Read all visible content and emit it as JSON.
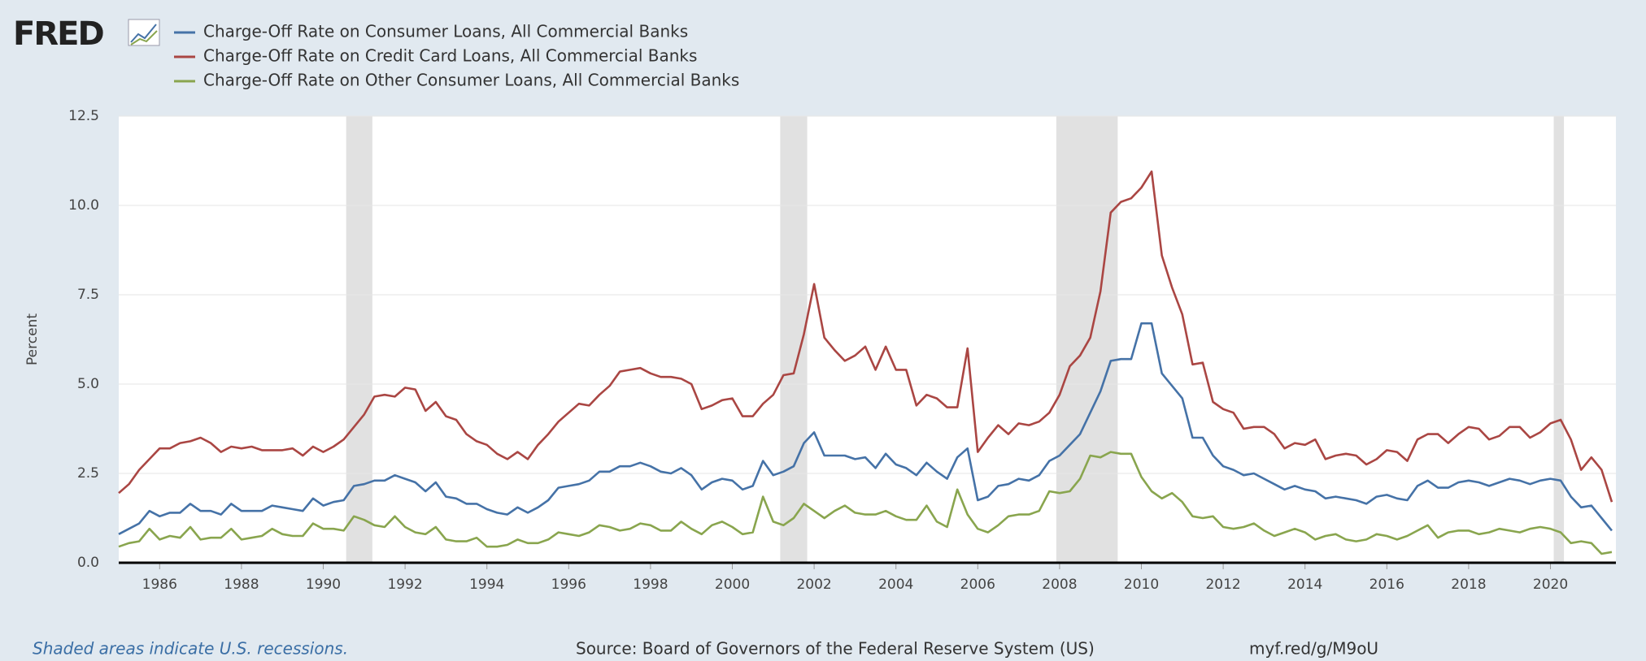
{
  "logo": "FRED",
  "footer": {
    "note": "Shaded areas indicate U.S. recessions.",
    "source": "Source: Board of Governors of the Federal Reserve System (US)",
    "link": "myf.red/g/M9oU"
  },
  "chart_data": {
    "type": "line",
    "y_label": "Percent",
    "xlim": [
      1985,
      2021.6
    ],
    "ylim": [
      0,
      12.5
    ],
    "xticks": [
      1986,
      1988,
      1990,
      1992,
      1994,
      1996,
      1998,
      2000,
      2002,
      2004,
      2006,
      2008,
      2010,
      2012,
      2014,
      2016,
      2018,
      2020
    ],
    "yticks": [
      {
        "value": 0,
        "label": "0.0"
      },
      {
        "value": 2.5,
        "label": "2.5"
      },
      {
        "value": 5,
        "label": "5.0"
      },
      {
        "value": 7.5,
        "label": "7.5"
      },
      {
        "value": 10,
        "label": "10.0"
      },
      {
        "value": 12.5,
        "label": "12.5"
      }
    ],
    "grid": true,
    "recessions": [
      [
        1990.56,
        1991.2
      ],
      [
        2001.17,
        2001.83
      ],
      [
        2007.92,
        2009.42
      ],
      [
        2020.08,
        2020.33
      ]
    ],
    "x": [
      1985,
      1985.25,
      1985.5,
      1985.75,
      1986,
      1986.25,
      1986.5,
      1986.75,
      1987,
      1987.25,
      1987.5,
      1987.75,
      1988,
      1988.25,
      1988.5,
      1988.75,
      1989,
      1989.25,
      1989.5,
      1989.75,
      1990,
      1990.25,
      1990.5,
      1990.75,
      1991,
      1991.25,
      1991.5,
      1991.75,
      1992,
      1992.25,
      1992.5,
      1992.75,
      1993,
      1993.25,
      1993.5,
      1993.75,
      1994,
      1994.25,
      1994.5,
      1994.75,
      1995,
      1995.25,
      1995.5,
      1995.75,
      1996,
      1996.25,
      1996.5,
      1996.75,
      1997,
      1997.25,
      1997.5,
      1997.75,
      1998,
      1998.25,
      1998.5,
      1998.75,
      1999,
      1999.25,
      1999.5,
      1999.75,
      2000,
      2000.25,
      2000.5,
      2000.75,
      2001,
      2001.25,
      2001.5,
      2001.75,
      2002,
      2002.25,
      2002.5,
      2002.75,
      2003,
      2003.25,
      2003.5,
      2003.75,
      2004,
      2004.25,
      2004.5,
      2004.75,
      2005,
      2005.25,
      2005.5,
      2005.75,
      2006,
      2006.25,
      2006.5,
      2006.75,
      2007,
      2007.25,
      2007.5,
      2007.75,
      2008,
      2008.25,
      2008.5,
      2008.75,
      2009,
      2009.25,
      2009.5,
      2009.75,
      2010,
      2010.25,
      2010.5,
      2010.75,
      2011,
      2011.25,
      2011.5,
      2011.75,
      2012,
      2012.25,
      2012.5,
      2012.75,
      2013,
      2013.25,
      2013.5,
      2013.75,
      2014,
      2014.25,
      2014.5,
      2014.75,
      2015,
      2015.25,
      2015.5,
      2015.75,
      2016,
      2016.25,
      2016.5,
      2016.75,
      2017,
      2017.25,
      2017.5,
      2017.75,
      2018,
      2018.25,
      2018.5,
      2018.75,
      2019,
      2019.25,
      2019.5,
      2019.75,
      2020,
      2020.25,
      2020.5,
      2020.75,
      2021,
      2021.25,
      2021.5
    ],
    "series": [
      {
        "name": "Charge-Off Rate on Consumer Loans, All Commercial Banks",
        "color": "#4572a7",
        "values": [
          0.8,
          0.95,
          1.1,
          1.45,
          1.3,
          1.4,
          1.4,
          1.65,
          1.45,
          1.45,
          1.35,
          1.65,
          1.45,
          1.45,
          1.45,
          1.6,
          1.55,
          1.5,
          1.45,
          1.8,
          1.6,
          1.7,
          1.75,
          2.15,
          2.2,
          2.3,
          2.3,
          2.45,
          2.35,
          2.25,
          2.0,
          2.25,
          1.85,
          1.8,
          1.65,
          1.65,
          1.5,
          1.4,
          1.35,
          1.55,
          1.4,
          1.55,
          1.75,
          2.1,
          2.15,
          2.2,
          2.3,
          2.55,
          2.55,
          2.7,
          2.7,
          2.8,
          2.7,
          2.55,
          2.5,
          2.65,
          2.45,
          2.05,
          2.25,
          2.35,
          2.3,
          2.05,
          2.15,
          2.85,
          2.45,
          2.55,
          2.7,
          3.35,
          3.65,
          3.0,
          3.0,
          3.0,
          2.9,
          2.95,
          2.65,
          3.05,
          2.75,
          2.65,
          2.45,
          2.8,
          2.55,
          2.35,
          2.95,
          3.2,
          1.75,
          1.85,
          2.15,
          2.2,
          2.35,
          2.3,
          2.45,
          2.85,
          3.0,
          3.3,
          3.6,
          4.2,
          4.8,
          5.65,
          5.7,
          5.7,
          6.7,
          6.7,
          5.3,
          4.95,
          4.6,
          3.5,
          3.5,
          3.0,
          2.7,
          2.6,
          2.45,
          2.5,
          2.35,
          2.2,
          2.05,
          2.15,
          2.05,
          2.0,
          1.8,
          1.85,
          1.8,
          1.75,
          1.65,
          1.85,
          1.9,
          1.8,
          1.75,
          2.15,
          2.3,
          2.1,
          2.1,
          2.25,
          2.3,
          2.25,
          2.15,
          2.25,
          2.35,
          2.3,
          2.2,
          2.3,
          2.35,
          2.3,
          1.85,
          1.55,
          1.6,
          1.25,
          0.9
        ]
      },
      {
        "name": "Charge-Off Rate on Credit Card Loans, All Commercial Banks",
        "color": "#aa4643",
        "values": [
          1.95,
          2.2,
          2.6,
          2.9,
          3.2,
          3.2,
          3.35,
          3.4,
          3.5,
          3.35,
          3.1,
          3.25,
          3.2,
          3.25,
          3.15,
          3.15,
          3.15,
          3.2,
          3.0,
          3.25,
          3.1,
          3.25,
          3.45,
          3.8,
          4.15,
          4.65,
          4.7,
          4.65,
          4.9,
          4.85,
          4.25,
          4.5,
          4.1,
          4.0,
          3.6,
          3.4,
          3.3,
          3.05,
          2.9,
          3.1,
          2.9,
          3.3,
          3.6,
          3.95,
          4.2,
          4.45,
          4.4,
          4.7,
          4.95,
          5.35,
          5.4,
          5.45,
          5.3,
          5.2,
          5.2,
          5.15,
          5.0,
          4.3,
          4.4,
          4.55,
          4.6,
          4.1,
          4.1,
          4.45,
          4.7,
          5.25,
          5.3,
          6.4,
          7.8,
          6.3,
          5.95,
          5.65,
          5.8,
          6.05,
          5.4,
          6.05,
          5.4,
          5.4,
          4.4,
          4.7,
          4.6,
          4.35,
          4.35,
          6.0,
          3.1,
          3.5,
          3.85,
          3.6,
          3.9,
          3.85,
          3.95,
          4.2,
          4.7,
          5.5,
          5.8,
          6.3,
          7.6,
          9.8,
          10.1,
          10.2,
          10.5,
          10.95,
          8.6,
          7.7,
          6.95,
          5.55,
          5.6,
          4.5,
          4.3,
          4.2,
          3.75,
          3.8,
          3.8,
          3.6,
          3.2,
          3.35,
          3.3,
          3.45,
          2.9,
          3.0,
          3.05,
          3.0,
          2.75,
          2.9,
          3.15,
          3.1,
          2.85,
          3.45,
          3.6,
          3.6,
          3.35,
          3.6,
          3.8,
          3.75,
          3.45,
          3.55,
          3.8,
          3.8,
          3.5,
          3.65,
          3.9,
          4.0,
          3.45,
          2.6,
          2.95,
          2.6,
          1.7
        ]
      },
      {
        "name": "Charge-Off Rate on Other Consumer Loans, All Commercial Banks",
        "color": "#89a54e",
        "values": [
          0.45,
          0.55,
          0.6,
          0.95,
          0.65,
          0.75,
          0.7,
          1.0,
          0.65,
          0.7,
          0.7,
          0.95,
          0.65,
          0.7,
          0.75,
          0.95,
          0.8,
          0.75,
          0.75,
          1.1,
          0.95,
          0.95,
          0.9,
          1.3,
          1.2,
          1.05,
          1.0,
          1.3,
          1.0,
          0.85,
          0.8,
          1.0,
          0.65,
          0.6,
          0.6,
          0.7,
          0.45,
          0.45,
          0.5,
          0.65,
          0.55,
          0.55,
          0.65,
          0.85,
          0.8,
          0.75,
          0.85,
          1.05,
          1.0,
          0.9,
          0.95,
          1.1,
          1.05,
          0.9,
          0.9,
          1.15,
          0.95,
          0.8,
          1.05,
          1.15,
          1.0,
          0.8,
          0.85,
          1.85,
          1.15,
          1.05,
          1.25,
          1.65,
          1.45,
          1.25,
          1.45,
          1.6,
          1.4,
          1.35,
          1.35,
          1.45,
          1.3,
          1.2,
          1.2,
          1.6,
          1.15,
          1.0,
          2.05,
          1.35,
          0.95,
          0.85,
          1.05,
          1.3,
          1.35,
          1.35,
          1.45,
          2.0,
          1.95,
          2.0,
          2.35,
          3.0,
          2.95,
          3.1,
          3.05,
          3.05,
          2.4,
          2.0,
          1.8,
          1.95,
          1.7,
          1.3,
          1.25,
          1.3,
          1.0,
          0.95,
          1.0,
          1.1,
          0.9,
          0.75,
          0.85,
          0.95,
          0.85,
          0.65,
          0.75,
          0.8,
          0.65,
          0.6,
          0.65,
          0.8,
          0.75,
          0.65,
          0.75,
          0.9,
          1.05,
          0.7,
          0.85,
          0.9,
          0.9,
          0.8,
          0.85,
          0.95,
          0.9,
          0.85,
          0.95,
          1.0,
          0.95,
          0.85,
          0.55,
          0.6,
          0.55,
          0.25,
          0.3
        ]
      }
    ]
  }
}
